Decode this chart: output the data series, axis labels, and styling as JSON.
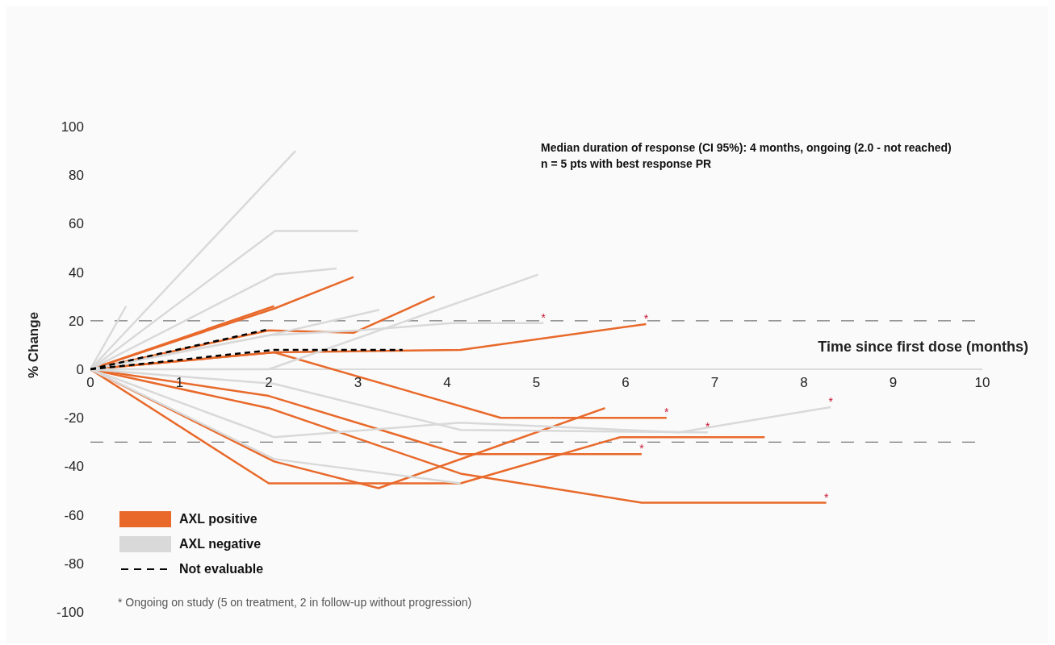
{
  "chart_data": {
    "type": "line",
    "xlabel": "Time since first dose (months)",
    "ylabel": "% Change",
    "xlim": [
      0,
      10
    ],
    "ylim": [
      -100,
      100
    ],
    "xticks": [
      0,
      1,
      2,
      3,
      4,
      5,
      6,
      7,
      8,
      9,
      10
    ],
    "yticks": [
      -100,
      -80,
      -60,
      -40,
      -20,
      0,
      20,
      40,
      60,
      80,
      100
    ],
    "legend": "bottom left",
    "line_style": "solid",
    "series": [
      {
        "name": "AXL positive",
        "color": "#e8692a",
        "x": [
          0,
          2.06,
          2.95
        ],
        "values": [
          0,
          25,
          38
        ]
      },
      {
        "color": "#e8692a",
        "x": [
          0,
          2.06
        ],
        "values": [
          0,
          26
        ]
      },
      {
        "color": "#e8692a",
        "x": [
          0,
          2.0,
          2.95,
          3.86
        ],
        "values": [
          0,
          16,
          15,
          30
        ]
      },
      {
        "color": "#e8692a",
        "x": [
          0,
          2.06,
          4.15,
          6.23
        ],
        "values": [
          0,
          7,
          8,
          18.6
        ]
      },
      {
        "color": "#e8692a",
        "x": [
          0,
          2.06,
          4.6,
          6.46
        ],
        "values": [
          0,
          7,
          -20,
          -20
        ]
      },
      {
        "color": "#e8692a",
        "x": [
          0,
          2.0,
          4.15,
          6.18
        ],
        "values": [
          0,
          -11,
          -35,
          -35
        ]
      },
      {
        "color": "#e8692a",
        "x": [
          0,
          2.0,
          4.15,
          6.18,
          8.25
        ],
        "values": [
          0,
          -16,
          -43,
          -55,
          -55
        ]
      },
      {
        "color": "#e8692a",
        "x": [
          0,
          2.06,
          3.23,
          5.77
        ],
        "values": [
          0,
          -38,
          -49,
          -16
        ]
      },
      {
        "color": "#e8692a",
        "x": [
          0,
          2.0,
          4.15,
          5.94,
          7.56
        ],
        "values": [
          0,
          -47,
          -47,
          -28,
          -28
        ]
      },
      {
        "name": "AXL negative",
        "color": "#d9d9d9",
        "x": [
          0,
          0.4
        ],
        "values": [
          0,
          26
        ]
      },
      {
        "color": "#d9d9d9",
        "x": [
          0,
          2.3
        ],
        "values": [
          0,
          90
        ]
      },
      {
        "color": "#d9d9d9",
        "x": [
          0,
          2.07,
          3.0
        ],
        "values": [
          0,
          57,
          57
        ]
      },
      {
        "color": "#d9d9d9",
        "x": [
          0,
          2.07,
          2.76
        ],
        "values": [
          0,
          39,
          41.5
        ]
      },
      {
        "color": "#d9d9d9",
        "x": [
          0,
          2,
          3.24
        ],
        "values": [
          0,
          14,
          24.5
        ]
      },
      {
        "color": "#d9d9d9",
        "x": [
          0,
          2,
          3,
          4.05,
          5.08
        ],
        "values": [
          0,
          14,
          16,
          19,
          19
        ]
      },
      {
        "color": "#d9d9d9",
        "x": [
          0,
          2.0,
          5.02
        ],
        "values": [
          0,
          0,
          39
        ]
      },
      {
        "color": "#d9d9d9",
        "x": [
          0,
          2.06,
          4.15,
          6.92
        ],
        "values": [
          0,
          -6,
          -25,
          -26
        ]
      },
      {
        "color": "#d9d9d9",
        "x": [
          0,
          2.06,
          4.15,
          6.6,
          8.3
        ],
        "values": [
          0,
          -28,
          -22,
          -26,
          -15.6
        ]
      },
      {
        "color": "#d9d9d9",
        "x": [
          0,
          2.06,
          4.15
        ],
        "values": [
          0,
          -37,
          -47
        ]
      },
      {
        "name": "Not evaluable",
        "color": "#000000",
        "line_style": "dashed",
        "x": [
          0,
          2.0
        ],
        "values": [
          0,
          16.5
        ]
      },
      {
        "color": "#000000",
        "line_style": "dashed",
        "x": [
          0,
          2.06,
          3.5
        ],
        "values": [
          0,
          8,
          8
        ]
      }
    ],
    "ref_lines": [
      {
        "axis": "y",
        "value": 20,
        "color": "#777777",
        "line_style": "dashed"
      },
      {
        "axis": "y",
        "value": -30,
        "color": "#777777",
        "line_style": "dashed"
      }
    ],
    "annotations": [
      "Median duration of response (CI 95%): 4 months, ongoing (2.0 - not reached)",
      "n = 5 pts with best response PR",
      "* Ongoing on study (5 on treatment, 2 in follow-up without progression)",
      {
        "text": "*",
        "x": 5.08,
        "y": 19
      },
      {
        "text": "*",
        "x": 6.23,
        "y": 18.6
      },
      {
        "text": "*",
        "x": 6.46,
        "y": -20
      },
      {
        "text": "*",
        "x": 6.18,
        "y": -35
      },
      {
        "text": "*",
        "x": 6.92,
        "y": -26
      },
      {
        "text": "*",
        "x": 8.3,
        "y": -15.6
      },
      {
        "text": "*",
        "x": 8.25,
        "y": -55
      }
    ]
  }
}
